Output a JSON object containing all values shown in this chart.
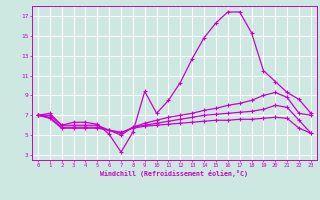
{
  "xlabel": "Windchill (Refroidissement éolien,°C)",
  "background_color": "#cce8e0",
  "grid_color": "#ffffff",
  "line_color": "#cc00cc",
  "xmin": -0.5,
  "xmax": 23.5,
  "ymin": 2.5,
  "ymax": 18.0,
  "yticks": [
    3,
    5,
    7,
    9,
    11,
    13,
    15,
    17
  ],
  "xticks": [
    0,
    1,
    2,
    3,
    4,
    5,
    6,
    7,
    8,
    9,
    10,
    11,
    12,
    13,
    14,
    15,
    16,
    17,
    18,
    19,
    20,
    21,
    22,
    23
  ],
  "series": [
    [
      7.0,
      7.2,
      6.0,
      6.3,
      6.3,
      6.1,
      5.1,
      3.3,
      5.3,
      9.4,
      7.2,
      8.5,
      10.3,
      12.7,
      14.8,
      16.3,
      17.4,
      17.4,
      15.3,
      11.5,
      10.4,
      9.3,
      8.6,
      7.2
    ],
    [
      7.0,
      7.0,
      6.0,
      6.0,
      6.0,
      6.0,
      5.5,
      5.0,
      5.8,
      6.2,
      6.5,
      6.8,
      7.0,
      7.2,
      7.5,
      7.7,
      8.0,
      8.2,
      8.5,
      9.0,
      9.3,
      8.8,
      7.2,
      7.0
    ],
    [
      7.0,
      6.8,
      5.8,
      5.8,
      5.8,
      5.8,
      5.5,
      5.2,
      5.8,
      6.0,
      6.2,
      6.4,
      6.6,
      6.8,
      7.0,
      7.1,
      7.2,
      7.3,
      7.4,
      7.6,
      8.0,
      7.8,
      6.5,
      5.2
    ],
    [
      7.0,
      6.7,
      5.7,
      5.7,
      5.7,
      5.7,
      5.5,
      5.3,
      5.7,
      5.9,
      6.0,
      6.1,
      6.2,
      6.3,
      6.4,
      6.5,
      6.5,
      6.6,
      6.6,
      6.7,
      6.8,
      6.7,
      5.7,
      5.2
    ]
  ]
}
